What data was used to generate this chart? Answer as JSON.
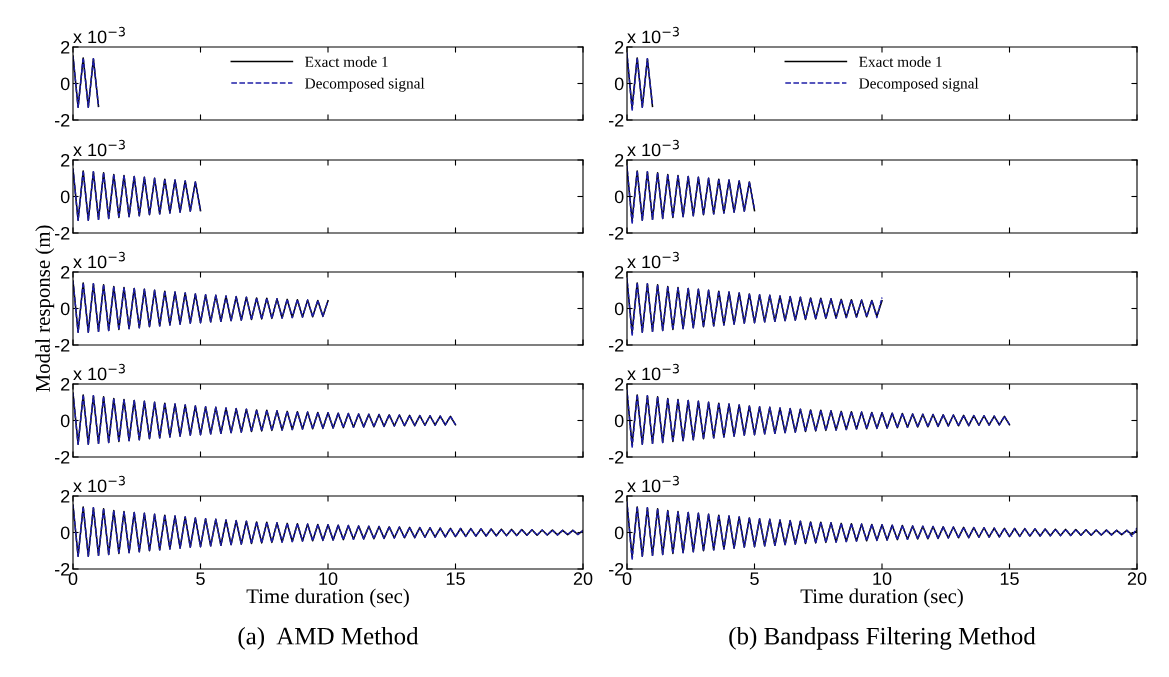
{
  "chart_data": [
    {
      "type": "line",
      "x": [
        0,
        0.2,
        0.4,
        0.6,
        0.8,
        1.0
      ],
      "series": [
        {
          "name": "Exact mode 1",
          "color": "#000000",
          "line_style": "solid",
          "values": [
            1.5,
            -1.3,
            1.4,
            -1.3,
            1.35,
            -1.25
          ]
        },
        {
          "name": "Decomposed signal",
          "color": "#1f1fa8",
          "line_style": "dashed",
          "values": [
            1.5,
            -1.3,
            1.4,
            -1.3,
            1.35,
            -1.25
          ]
        }
      ],
      "xlim": [
        0,
        20
      ],
      "ylim": [
        -2,
        2
      ],
      "xticks": [
        0,
        5,
        10,
        15,
        20
      ],
      "yticks": [
        -2,
        0,
        2
      ],
      "tick_labels": "y",
      "legend": "top",
      "grid": false,
      "annotations": [
        "x 10$^{−3}$"
      ]
    },
    {
      "type": "line",
      "x": [
        0,
        0.2,
        0.4,
        0.6,
        0.8,
        1.0
      ],
      "series": [
        {
          "name": "Exact mode 1",
          "color": "#000000",
          "line_style": "solid",
          "values": [
            1.5,
            -1.3,
            1.4,
            -1.3,
            1.35,
            -1.25
          ]
        },
        {
          "name": "Decomposed signal",
          "color": "#1f1fa8",
          "line_style": "dashed",
          "values": [
            1.7,
            -1.5,
            1.4,
            -1.3,
            1.35,
            -1.2
          ]
        }
      ],
      "xlim": [
        0,
        20
      ],
      "ylim": [
        -2,
        2
      ],
      "xticks": [
        0,
        5,
        10,
        15,
        20
      ],
      "yticks": [
        -2,
        0,
        2
      ],
      "tick_labels": "y",
      "legend": "top",
      "grid": false,
      "annotations": [
        "x 10$^{−3}$"
      ]
    },
    {
      "type": "line",
      "x": [
        0,
        0.2,
        0.4,
        0.6,
        0.8,
        1.0,
        1.2,
        1.4,
        1.6,
        1.8,
        2.0,
        2.2,
        2.4,
        2.6,
        2.8,
        3.0,
        3.2,
        3.4,
        3.6,
        3.8,
        4.0,
        4.2,
        4.4,
        4.6,
        4.8,
        5.0
      ],
      "series": [
        {
          "color": "#000000",
          "line_style": "solid",
          "values": [
            1.5,
            -1.3,
            1.4,
            -1.3,
            1.35,
            -1.25,
            1.3,
            -1.2,
            1.2,
            -1.15,
            1.15,
            -1.1,
            1.1,
            -1.05,
            1.05,
            -1.0,
            1.0,
            -0.95,
            0.95,
            -0.9,
            0.9,
            -0.85,
            0.85,
            -0.8,
            0.8,
            -0.78
          ]
        },
        {
          "color": "#1f1fa8",
          "line_style": "dashed",
          "values": [
            1.5,
            -1.3,
            1.4,
            -1.3,
            1.35,
            -1.25,
            1.3,
            -1.2,
            1.2,
            -1.15,
            1.15,
            -1.1,
            1.1,
            -1.05,
            1.05,
            -1.0,
            1.0,
            -0.95,
            0.95,
            -0.9,
            0.9,
            -0.85,
            0.85,
            -0.8,
            0.8,
            -0.78
          ]
        }
      ],
      "xlim": [
        0,
        20
      ],
      "ylim": [
        -2,
        2
      ],
      "xticks": [
        0,
        5,
        10,
        15,
        20
      ],
      "yticks": [
        -2,
        0,
        2
      ],
      "tick_labels": "y",
      "grid": false,
      "annotations": [
        "x 10$^{−3}$"
      ]
    },
    {
      "type": "line",
      "x": [
        0,
        0.2,
        0.4,
        0.6,
        0.8,
        1.0,
        1.2,
        1.4,
        1.6,
        1.8,
        2.0,
        2.2,
        2.4,
        2.6,
        2.8,
        3.0,
        3.2,
        3.4,
        3.6,
        3.8,
        4.0,
        4.2,
        4.4,
        4.6,
        4.8,
        5.0
      ],
      "series": [
        {
          "color": "#000000",
          "line_style": "solid",
          "values": [
            1.5,
            -1.3,
            1.4,
            -1.3,
            1.35,
            -1.25,
            1.3,
            -1.2,
            1.2,
            -1.15,
            1.15,
            -1.1,
            1.1,
            -1.05,
            1.05,
            -1.0,
            1.0,
            -0.95,
            0.95,
            -0.9,
            0.9,
            -0.85,
            0.85,
            -0.8,
            0.8,
            -0.78
          ]
        },
        {
          "color": "#1f1fa8",
          "line_style": "dashed",
          "values": [
            1.7,
            -1.5,
            1.4,
            -1.3,
            1.35,
            -1.25,
            1.3,
            -1.2,
            1.2,
            -1.15,
            1.15,
            -1.1,
            1.1,
            -1.05,
            1.05,
            -1.0,
            1.0,
            -0.95,
            0.95,
            -0.9,
            0.9,
            -0.85,
            0.85,
            -0.8,
            0.8,
            -0.7
          ]
        }
      ],
      "xlim": [
        0,
        20
      ],
      "ylim": [
        -2,
        2
      ],
      "xticks": [
        0,
        5,
        10,
        15,
        20
      ],
      "yticks": [
        -2,
        0,
        2
      ],
      "tick_labels": "y",
      "grid": false,
      "annotations": [
        "x 10$^{−3}$"
      ]
    },
    {
      "type": "line",
      "x": [
        0,
        0.2,
        0.4,
        0.6,
        0.8,
        1.0,
        1.2,
        1.4,
        1.6,
        1.8,
        2.0,
        2.2,
        2.4,
        2.6,
        2.8,
        3.0,
        3.2,
        3.4,
        3.6,
        3.8,
        4.0,
        4.2,
        4.4,
        4.6,
        4.8,
        5.0,
        5.2,
        5.4,
        5.6,
        5.8,
        6.0,
        6.2,
        6.4,
        6.6,
        6.8,
        7.0,
        7.2,
        7.4,
        7.6,
        7.8,
        8.0,
        8.2,
        8.4,
        8.6,
        8.8,
        9.0,
        9.2,
        9.4,
        9.6,
        9.8,
        10.0
      ],
      "series": [
        {
          "color": "#000000",
          "line_style": "solid",
          "values": [
            1.5,
            -1.3,
            1.4,
            -1.3,
            1.35,
            -1.25,
            1.3,
            -1.2,
            1.2,
            -1.15,
            1.15,
            -1.1,
            1.1,
            -1.05,
            1.05,
            -1.0,
            1.0,
            -0.95,
            0.95,
            -0.9,
            0.9,
            -0.85,
            0.85,
            -0.8,
            0.8,
            -0.78,
            0.75,
            -0.73,
            0.72,
            -0.7,
            0.68,
            -0.66,
            0.65,
            -0.63,
            0.62,
            -0.6,
            0.58,
            -0.57,
            0.56,
            -0.54,
            0.53,
            -0.52,
            0.5,
            -0.49,
            0.48,
            -0.47,
            0.46,
            -0.45,
            0.44,
            -0.43,
            0.42
          ]
        },
        {
          "color": "#1f1fa8",
          "line_style": "dashed",
          "values": [
            1.5,
            -1.3,
            1.4,
            -1.3,
            1.35,
            -1.25,
            1.3,
            -1.2,
            1.2,
            -1.15,
            1.15,
            -1.1,
            1.1,
            -1.05,
            1.05,
            -1.0,
            1.0,
            -0.95,
            0.95,
            -0.9,
            0.9,
            -0.85,
            0.85,
            -0.8,
            0.8,
            -0.78,
            0.75,
            -0.73,
            0.72,
            -0.7,
            0.68,
            -0.66,
            0.65,
            -0.63,
            0.62,
            -0.6,
            0.58,
            -0.57,
            0.56,
            -0.54,
            0.53,
            -0.52,
            0.5,
            -0.49,
            0.48,
            -0.47,
            0.46,
            -0.45,
            0.44,
            -0.43,
            0.42
          ]
        }
      ],
      "xlim": [
        0,
        20
      ],
      "ylim": [
        -2,
        2
      ],
      "xticks": [
        0,
        5,
        10,
        15,
        20
      ],
      "yticks": [
        -2,
        0,
        2
      ],
      "tick_labels": "y",
      "grid": false,
      "ylabel": "Modal response (m)",
      "annotations": [
        "x 10$^{−3}$"
      ]
    },
    {
      "type": "line",
      "x": [
        0,
        0.2,
        0.4,
        0.6,
        0.8,
        1.0,
        1.2,
        1.4,
        1.6,
        1.8,
        2.0,
        2.2,
        2.4,
        2.6,
        2.8,
        3.0,
        3.2,
        3.4,
        3.6,
        3.8,
        4.0,
        4.2,
        4.4,
        4.6,
        4.8,
        5.0,
        5.2,
        5.4,
        5.6,
        5.8,
        6.0,
        6.2,
        6.4,
        6.6,
        6.8,
        7.0,
        7.2,
        7.4,
        7.6,
        7.8,
        8.0,
        8.2,
        8.4,
        8.6,
        8.8,
        9.0,
        9.2,
        9.4,
        9.6,
        9.8,
        10.0
      ],
      "series": [
        {
          "color": "#000000",
          "line_style": "solid",
          "values": [
            1.5,
            -1.3,
            1.4,
            -1.3,
            1.35,
            -1.25,
            1.3,
            -1.2,
            1.2,
            -1.15,
            1.15,
            -1.1,
            1.1,
            -1.05,
            1.05,
            -1.0,
            1.0,
            -0.95,
            0.95,
            -0.9,
            0.9,
            -0.85,
            0.85,
            -0.8,
            0.8,
            -0.78,
            0.75,
            -0.73,
            0.72,
            -0.7,
            0.68,
            -0.66,
            0.65,
            -0.63,
            0.62,
            -0.6,
            0.58,
            -0.57,
            0.56,
            -0.54,
            0.53,
            -0.52,
            0.5,
            -0.49,
            0.48,
            -0.47,
            0.46,
            -0.45,
            0.44,
            -0.43,
            0.42
          ]
        },
        {
          "color": "#1f1fa8",
          "line_style": "dashed",
          "values": [
            1.7,
            -1.5,
            1.4,
            -1.3,
            1.35,
            -1.25,
            1.3,
            -1.2,
            1.2,
            -1.15,
            1.15,
            -1.1,
            1.1,
            -1.05,
            1.05,
            -1.0,
            1.0,
            -0.95,
            0.95,
            -0.9,
            0.9,
            -0.85,
            0.85,
            -0.8,
            0.8,
            -0.78,
            0.75,
            -0.73,
            0.72,
            -0.7,
            0.68,
            -0.66,
            0.65,
            -0.63,
            0.62,
            -0.6,
            0.58,
            -0.57,
            0.56,
            -0.54,
            0.53,
            -0.52,
            0.5,
            -0.49,
            0.48,
            -0.47,
            0.46,
            -0.45,
            0.44,
            -0.5,
            0.6
          ]
        }
      ],
      "xlim": [
        0,
        20
      ],
      "ylim": [
        -2,
        2
      ],
      "xticks": [
        0,
        5,
        10,
        15,
        20
      ],
      "yticks": [
        -2,
        0,
        2
      ],
      "tick_labels": "y",
      "grid": false,
      "annotations": [
        "x 10$^{−3}$"
      ]
    },
    {
      "type": "line",
      "x": [
        0,
        0.2,
        0.4,
        0.6,
        0.8,
        1.0,
        1.2,
        1.4,
        1.6,
        1.8,
        2.0,
        2.2,
        2.4,
        2.6,
        2.8,
        3.0,
        3.2,
        3.4,
        3.6,
        3.8,
        4.0,
        4.2,
        4.4,
        4.6,
        4.8,
        5.0,
        5.2,
        5.4,
        5.6,
        5.8,
        6.0,
        6.2,
        6.4,
        6.6,
        6.8,
        7.0,
        7.2,
        7.4,
        7.6,
        7.8,
        8.0,
        8.2,
        8.4,
        8.6,
        8.8,
        9.0,
        9.2,
        9.4,
        9.6,
        9.8,
        10.0,
        10.2,
        10.4,
        10.6,
        10.8,
        11.0,
        11.2,
        11.4,
        11.6,
        11.8,
        12.0,
        12.2,
        12.4,
        12.6,
        12.8,
        13.0,
        13.2,
        13.4,
        13.6,
        13.8,
        14.0,
        14.2,
        14.4,
        14.6,
        14.8,
        15.0
      ],
      "series": [
        {
          "color": "#000000",
          "line_style": "solid",
          "values": [
            1.5,
            -1.3,
            1.4,
            -1.3,
            1.35,
            -1.25,
            1.3,
            -1.2,
            1.2,
            -1.15,
            1.15,
            -1.1,
            1.1,
            -1.05,
            1.05,
            -1.0,
            1.0,
            -0.95,
            0.95,
            -0.9,
            0.9,
            -0.85,
            0.85,
            -0.8,
            0.8,
            -0.78,
            0.75,
            -0.73,
            0.72,
            -0.7,
            0.68,
            -0.66,
            0.65,
            -0.63,
            0.62,
            -0.6,
            0.58,
            -0.57,
            0.56,
            -0.54,
            0.53,
            -0.52,
            0.5,
            -0.49,
            0.48,
            -0.47,
            0.46,
            -0.45,
            0.44,
            -0.43,
            0.42,
            -0.41,
            0.4,
            -0.39,
            0.38,
            -0.37,
            0.36,
            -0.35,
            0.34,
            -0.34,
            0.33,
            -0.32,
            0.31,
            -0.3,
            0.3,
            -0.29,
            0.28,
            -0.28,
            0.27,
            -0.26,
            0.26,
            -0.25,
            0.24,
            -0.24,
            0.23,
            -0.23
          ]
        },
        {
          "color": "#1f1fa8",
          "line_style": "dashed",
          "values": [
            1.5,
            -1.3,
            1.4,
            -1.3,
            1.35,
            -1.25,
            1.3,
            -1.2,
            1.2,
            -1.15,
            1.15,
            -1.1,
            1.1,
            -1.05,
            1.05,
            -1.0,
            1.0,
            -0.95,
            0.95,
            -0.9,
            0.9,
            -0.85,
            0.85,
            -0.8,
            0.8,
            -0.78,
            0.75,
            -0.73,
            0.72,
            -0.7,
            0.68,
            -0.66,
            0.65,
            -0.63,
            0.62,
            -0.6,
            0.58,
            -0.57,
            0.56,
            -0.54,
            0.53,
            -0.52,
            0.5,
            -0.49,
            0.48,
            -0.47,
            0.46,
            -0.45,
            0.44,
            -0.43,
            0.42,
            -0.41,
            0.4,
            -0.39,
            0.38,
            -0.37,
            0.36,
            -0.35,
            0.34,
            -0.34,
            0.33,
            -0.32,
            0.31,
            -0.3,
            0.3,
            -0.29,
            0.28,
            -0.28,
            0.27,
            -0.26,
            0.26,
            -0.25,
            0.24,
            -0.24,
            0.23,
            -0.23
          ]
        }
      ],
      "xlim": [
        0,
        20
      ],
      "ylim": [
        -2,
        2
      ],
      "xticks": [
        0,
        5,
        10,
        15,
        20
      ],
      "yticks": [
        -2,
        0,
        2
      ],
      "tick_labels": "y",
      "grid": false,
      "annotations": [
        "x 10$^{−3}$"
      ]
    },
    {
      "type": "line",
      "x": [
        0,
        0.2,
        0.4,
        0.6,
        0.8,
        1.0,
        1.2,
        1.4,
        1.6,
        1.8,
        2.0,
        2.2,
        2.4,
        2.6,
        2.8,
        3.0,
        3.2,
        3.4,
        3.6,
        3.8,
        4.0,
        4.2,
        4.4,
        4.6,
        4.8,
        5.0,
        5.2,
        5.4,
        5.6,
        5.8,
        6.0,
        6.2,
        6.4,
        6.6,
        6.8,
        7.0,
        7.2,
        7.4,
        7.6,
        7.8,
        8.0,
        8.2,
        8.4,
        8.6,
        8.8,
        9.0,
        9.2,
        9.4,
        9.6,
        9.8,
        10.0,
        10.2,
        10.4,
        10.6,
        10.8,
        11.0,
        11.2,
        11.4,
        11.6,
        11.8,
        12.0,
        12.2,
        12.4,
        12.6,
        12.8,
        13.0,
        13.2,
        13.4,
        13.6,
        13.8,
        14.0,
        14.2,
        14.4,
        14.6,
        14.8,
        15.0
      ],
      "series": [
        {
          "color": "#000000",
          "line_style": "solid",
          "values": [
            1.5,
            -1.3,
            1.4,
            -1.3,
            1.35,
            -1.25,
            1.3,
            -1.2,
            1.2,
            -1.15,
            1.15,
            -1.1,
            1.1,
            -1.05,
            1.05,
            -1.0,
            1.0,
            -0.95,
            0.95,
            -0.9,
            0.9,
            -0.85,
            0.85,
            -0.8,
            0.8,
            -0.78,
            0.75,
            -0.73,
            0.72,
            -0.7,
            0.68,
            -0.66,
            0.65,
            -0.63,
            0.62,
            -0.6,
            0.58,
            -0.57,
            0.56,
            -0.54,
            0.53,
            -0.52,
            0.5,
            -0.49,
            0.48,
            -0.47,
            0.46,
            -0.45,
            0.44,
            -0.43,
            0.42,
            -0.41,
            0.4,
            -0.39,
            0.38,
            -0.37,
            0.36,
            -0.35,
            0.34,
            -0.34,
            0.33,
            -0.32,
            0.31,
            -0.3,
            0.3,
            -0.29,
            0.28,
            -0.28,
            0.27,
            -0.26,
            0.26,
            -0.25,
            0.24,
            -0.24,
            0.23,
            -0.23
          ]
        },
        {
          "color": "#1f1fa8",
          "line_style": "dashed",
          "values": [
            1.7,
            -1.5,
            1.4,
            -1.3,
            1.35,
            -1.25,
            1.3,
            -1.2,
            1.2,
            -1.15,
            1.15,
            -1.1,
            1.1,
            -1.05,
            1.05,
            -1.0,
            1.0,
            -0.95,
            0.95,
            -0.9,
            0.9,
            -0.85,
            0.85,
            -0.8,
            0.8,
            -0.78,
            0.75,
            -0.73,
            0.72,
            -0.7,
            0.68,
            -0.66,
            0.65,
            -0.63,
            0.62,
            -0.6,
            0.58,
            -0.57,
            0.56,
            -0.54,
            0.53,
            -0.52,
            0.5,
            -0.49,
            0.48,
            -0.47,
            0.46,
            -0.45,
            0.44,
            -0.43,
            0.42,
            -0.41,
            0.4,
            -0.39,
            0.38,
            -0.37,
            0.36,
            -0.35,
            0.34,
            -0.34,
            0.33,
            -0.32,
            0.31,
            -0.3,
            0.3,
            -0.29,
            0.28,
            -0.28,
            0.27,
            -0.26,
            0.26,
            -0.25,
            0.24,
            -0.24,
            0.23,
            -0.23
          ]
        }
      ],
      "xlim": [
        0,
        20
      ],
      "ylim": [
        -2,
        2
      ],
      "xticks": [
        0,
        5,
        10,
        15,
        20
      ],
      "yticks": [
        -2,
        0,
        2
      ],
      "tick_labels": "y",
      "grid": false,
      "annotations": [
        "x 10$^{−3}$"
      ]
    },
    {
      "type": "line",
      "x": [
        0,
        0.2,
        0.4,
        0.6,
        0.8,
        1.0,
        1.2,
        1.4,
        1.6,
        1.8,
        2.0,
        2.2,
        2.4,
        2.6,
        2.8,
        3.0,
        3.2,
        3.4,
        3.6,
        3.8,
        4.0,
        4.2,
        4.4,
        4.6,
        4.8,
        5.0,
        5.2,
        5.4,
        5.6,
        5.8,
        6.0,
        6.2,
        6.4,
        6.6,
        6.8,
        7.0,
        7.2,
        7.4,
        7.6,
        7.8,
        8.0,
        8.2,
        8.4,
        8.6,
        8.8,
        9.0,
        9.2,
        9.4,
        9.6,
        9.8,
        10.0,
        10.2,
        10.4,
        10.6,
        10.8,
        11.0,
        11.2,
        11.4,
        11.6,
        11.8,
        12.0,
        12.2,
        12.4,
        12.6,
        12.8,
        13.0,
        13.2,
        13.4,
        13.6,
        13.8,
        14.0,
        14.2,
        14.4,
        14.6,
        14.8,
        15.0,
        15.2,
        15.4,
        15.6,
        15.8,
        16.0,
        16.2,
        16.4,
        16.6,
        16.8,
        17.0,
        17.2,
        17.4,
        17.6,
        17.8,
        18.0,
        18.2,
        18.4,
        18.6,
        18.8,
        19.0,
        19.2,
        19.4,
        19.6,
        19.8,
        20.0
      ],
      "series": [
        {
          "color": "#000000",
          "line_style": "solid",
          "values": [
            1.5,
            -1.3,
            1.4,
            -1.3,
            1.35,
            -1.25,
            1.3,
            -1.2,
            1.2,
            -1.15,
            1.15,
            -1.1,
            1.1,
            -1.05,
            1.05,
            -1.0,
            1.0,
            -0.95,
            0.95,
            -0.9,
            0.9,
            -0.85,
            0.85,
            -0.8,
            0.8,
            -0.78,
            0.75,
            -0.73,
            0.72,
            -0.7,
            0.68,
            -0.66,
            0.65,
            -0.63,
            0.62,
            -0.6,
            0.58,
            -0.57,
            0.56,
            -0.54,
            0.53,
            -0.52,
            0.5,
            -0.49,
            0.48,
            -0.47,
            0.46,
            -0.45,
            0.44,
            -0.43,
            0.42,
            -0.41,
            0.4,
            -0.39,
            0.38,
            -0.37,
            0.36,
            -0.35,
            0.34,
            -0.34,
            0.33,
            -0.32,
            0.31,
            -0.3,
            0.3,
            -0.29,
            0.28,
            -0.28,
            0.27,
            -0.26,
            0.26,
            -0.25,
            0.24,
            -0.24,
            0.23,
            -0.23,
            0.22,
            -0.21,
            0.21,
            -0.2,
            0.2,
            -0.19,
            0.19,
            -0.18,
            0.18,
            -0.17,
            0.17,
            -0.16,
            0.16,
            -0.15,
            0.15,
            -0.15,
            0.14,
            -0.14,
            0.13,
            -0.13,
            0.12,
            -0.12,
            0.12,
            -0.11,
            0.11
          ]
        },
        {
          "color": "#1f1fa8",
          "line_style": "dashed",
          "values": [
            1.5,
            -1.3,
            1.4,
            -1.3,
            1.35,
            -1.25,
            1.3,
            -1.2,
            1.2,
            -1.15,
            1.15,
            -1.1,
            1.1,
            -1.05,
            1.05,
            -1.0,
            1.0,
            -0.95,
            0.95,
            -0.9,
            0.9,
            -0.85,
            0.85,
            -0.8,
            0.8,
            -0.78,
            0.75,
            -0.73,
            0.72,
            -0.7,
            0.68,
            -0.66,
            0.65,
            -0.63,
            0.62,
            -0.6,
            0.58,
            -0.57,
            0.56,
            -0.54,
            0.53,
            -0.52,
            0.5,
            -0.49,
            0.48,
            -0.47,
            0.46,
            -0.45,
            0.44,
            -0.43,
            0.42,
            -0.41,
            0.4,
            -0.39,
            0.38,
            -0.37,
            0.36,
            -0.35,
            0.34,
            -0.34,
            0.33,
            -0.32,
            0.31,
            -0.3,
            0.3,
            -0.29,
            0.28,
            -0.28,
            0.27,
            -0.26,
            0.26,
            -0.25,
            0.24,
            -0.24,
            0.23,
            -0.23,
            0.22,
            -0.21,
            0.21,
            -0.2,
            0.2,
            -0.19,
            0.19,
            -0.18,
            0.18,
            -0.17,
            0.17,
            -0.16,
            0.16,
            -0.15,
            0.15,
            -0.15,
            0.14,
            -0.14,
            0.13,
            -0.13,
            0.12,
            -0.12,
            0.12,
            -0.11,
            0.11
          ]
        }
      ],
      "xlim": [
        0,
        20
      ],
      "ylim": [
        -2,
        2
      ],
      "xticks": [
        0,
        5,
        10,
        15,
        20
      ],
      "yticks": [
        -2,
        0,
        2
      ],
      "grid": false,
      "xlabel": "Time duration (sec)",
      "annotations": [
        "x 10$^{−3}$",
        "(a)  AMD Method"
      ]
    },
    {
      "type": "line",
      "x": [
        0,
        0.2,
        0.4,
        0.6,
        0.8,
        1.0,
        1.2,
        1.4,
        1.6,
        1.8,
        2.0,
        2.2,
        2.4,
        2.6,
        2.8,
        3.0,
        3.2,
        3.4,
        3.6,
        3.8,
        4.0,
        4.2,
        4.4,
        4.6,
        4.8,
        5.0,
        5.2,
        5.4,
        5.6,
        5.8,
        6.0,
        6.2,
        6.4,
        6.6,
        6.8,
        7.0,
        7.2,
        7.4,
        7.6,
        7.8,
        8.0,
        8.2,
        8.4,
        8.6,
        8.8,
        9.0,
        9.2,
        9.4,
        9.6,
        9.8,
        10.0,
        10.2,
        10.4,
        10.6,
        10.8,
        11.0,
        11.2,
        11.4,
        11.6,
        11.8,
        12.0,
        12.2,
        12.4,
        12.6,
        12.8,
        13.0,
        13.2,
        13.4,
        13.6,
        13.8,
        14.0,
        14.2,
        14.4,
        14.6,
        14.8,
        15.0,
        15.2,
        15.4,
        15.6,
        15.8,
        16.0,
        16.2,
        16.4,
        16.6,
        16.8,
        17.0,
        17.2,
        17.4,
        17.6,
        17.8,
        18.0,
        18.2,
        18.4,
        18.6,
        18.8,
        19.0,
        19.2,
        19.4,
        19.6,
        19.8,
        20.0
      ],
      "series": [
        {
          "color": "#000000",
          "line_style": "solid",
          "values": [
            1.5,
            -1.3,
            1.4,
            -1.3,
            1.35,
            -1.25,
            1.3,
            -1.2,
            1.2,
            -1.15,
            1.15,
            -1.1,
            1.1,
            -1.05,
            1.05,
            -1.0,
            1.0,
            -0.95,
            0.95,
            -0.9,
            0.9,
            -0.85,
            0.85,
            -0.8,
            0.8,
            -0.78,
            0.75,
            -0.73,
            0.72,
            -0.7,
            0.68,
            -0.66,
            0.65,
            -0.63,
            0.62,
            -0.6,
            0.58,
            -0.57,
            0.56,
            -0.54,
            0.53,
            -0.52,
            0.5,
            -0.49,
            0.48,
            -0.47,
            0.46,
            -0.45,
            0.44,
            -0.43,
            0.42,
            -0.41,
            0.4,
            -0.39,
            0.38,
            -0.37,
            0.36,
            -0.35,
            0.34,
            -0.34,
            0.33,
            -0.32,
            0.31,
            -0.3,
            0.3,
            -0.29,
            0.28,
            -0.28,
            0.27,
            -0.26,
            0.26,
            -0.25,
            0.24,
            -0.24,
            0.23,
            -0.23,
            0.22,
            -0.21,
            0.21,
            -0.2,
            0.2,
            -0.19,
            0.19,
            -0.18,
            0.18,
            -0.17,
            0.17,
            -0.16,
            0.16,
            -0.15,
            0.15,
            -0.15,
            0.14,
            -0.14,
            0.13,
            -0.13,
            0.12,
            -0.12,
            0.12,
            -0.11,
            0.11
          ]
        },
        {
          "color": "#1f1fa8",
          "line_style": "dashed",
          "values": [
            1.7,
            -1.5,
            1.4,
            -1.3,
            1.35,
            -1.25,
            1.3,
            -1.2,
            1.2,
            -1.15,
            1.15,
            -1.1,
            1.1,
            -1.05,
            1.05,
            -1.0,
            1.0,
            -0.95,
            0.95,
            -0.9,
            0.9,
            -0.85,
            0.85,
            -0.8,
            0.8,
            -0.78,
            0.75,
            -0.73,
            0.72,
            -0.7,
            0.68,
            -0.66,
            0.65,
            -0.63,
            0.62,
            -0.6,
            0.58,
            -0.57,
            0.56,
            -0.54,
            0.53,
            -0.52,
            0.5,
            -0.49,
            0.48,
            -0.47,
            0.46,
            -0.45,
            0.44,
            -0.43,
            0.42,
            -0.41,
            0.4,
            -0.39,
            0.38,
            -0.37,
            0.36,
            -0.35,
            0.34,
            -0.34,
            0.33,
            -0.32,
            0.31,
            -0.3,
            0.3,
            -0.29,
            0.28,
            -0.28,
            0.27,
            -0.26,
            0.26,
            -0.25,
            0.24,
            -0.24,
            0.23,
            -0.23,
            0.22,
            -0.21,
            0.21,
            -0.2,
            0.2,
            -0.19,
            0.19,
            -0.18,
            0.18,
            -0.17,
            0.17,
            -0.16,
            0.16,
            -0.15,
            0.15,
            -0.15,
            0.14,
            -0.14,
            0.13,
            -0.13,
            0.12,
            -0.12,
            0.12,
            -0.2,
            0.25
          ]
        }
      ],
      "xlim": [
        0,
        20
      ],
      "ylim": [
        -2,
        2
      ],
      "xticks": [
        0,
        5,
        10,
        15,
        20
      ],
      "yticks": [
        -2,
        0,
        2
      ],
      "grid": false,
      "xlabel": "Time duration (sec)",
      "annotations": [
        "x 10$^{−3}$",
        "(b) Bandpass Filtering Method"
      ]
    }
  ]
}
